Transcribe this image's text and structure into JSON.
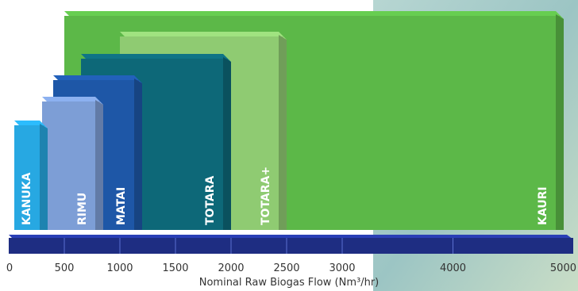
{
  "chart_data": {
    "type": "bar",
    "orientation": "horizontal-range",
    "xlabel": "Nominal Raw Biogas Flow (Nm³/hr)",
    "xlim": [
      0,
      5000
    ],
    "axis_break_after": 3000,
    "ticks": [
      {
        "value": 0,
        "label": "0"
      },
      {
        "value": 500,
        "label": "500"
      },
      {
        "value": 1000,
        "label": "1000"
      },
      {
        "value": 1500,
        "label": "1500"
      },
      {
        "value": 2000,
        "label": "2000"
      },
      {
        "value": 2500,
        "label": "2500"
      },
      {
        "value": 3000,
        "label": "3000"
      },
      {
        "value": 4000,
        "label": "4000"
      },
      {
        "value": 5000,
        "label": "5000"
      }
    ],
    "series": [
      {
        "label": "KAURI",
        "start": 500,
        "end": 5000,
        "color": "#5cb848"
      },
      {
        "label": "TOTARA+",
        "start": 1000,
        "end": 2500,
        "color": "#8fcb72"
      },
      {
        "label": "TOTARA",
        "start": 650,
        "end": 2000,
        "color": "#0d6878"
      },
      {
        "label": "MATAI",
        "start": 400,
        "end": 1200,
        "color": "#1e57a7"
      },
      {
        "label": "RIMU",
        "start": 300,
        "end": 850,
        "color": "#7d9ed6"
      },
      {
        "label": "KANUKA",
        "start": 50,
        "end": 350,
        "color": "#27a8e2"
      }
    ],
    "axis_bar_color": "#1e2d82"
  }
}
